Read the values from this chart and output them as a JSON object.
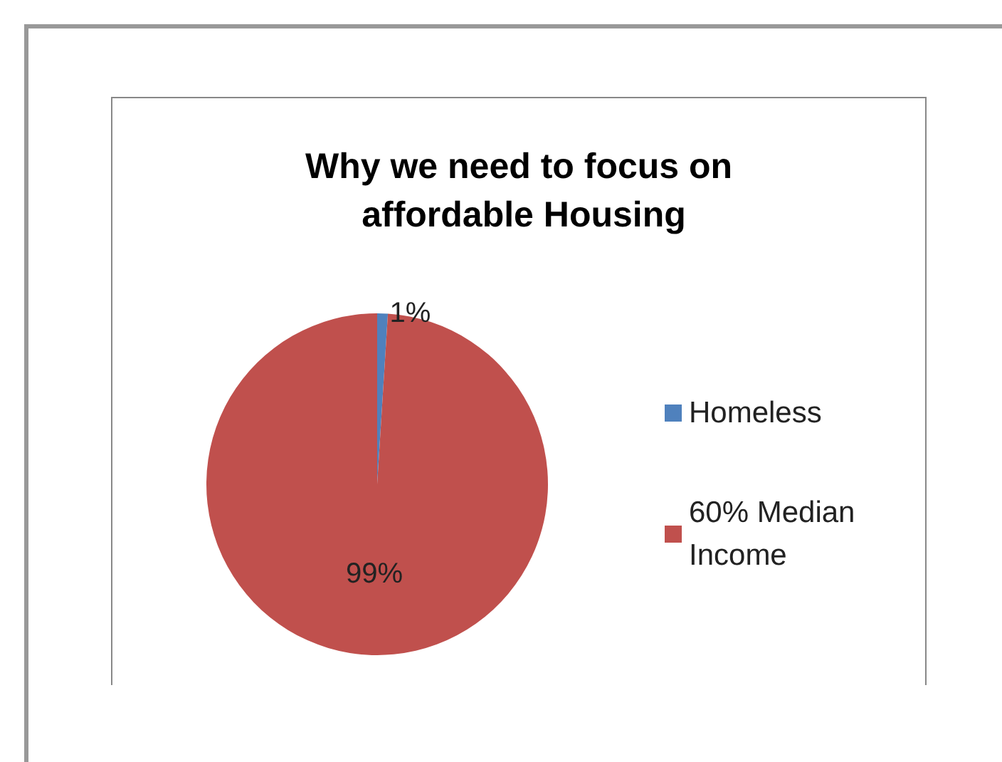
{
  "chart_data": {
    "type": "pie",
    "title": "Why we need to focus on affordable Housing",
    "categories": [
      "Homeless",
      "60% Median Income"
    ],
    "values": [
      1,
      99
    ],
    "colors": [
      "#4f81bd",
      "#c0504d"
    ],
    "value_labels": [
      "1%",
      "99%"
    ],
    "legend": "right"
  }
}
